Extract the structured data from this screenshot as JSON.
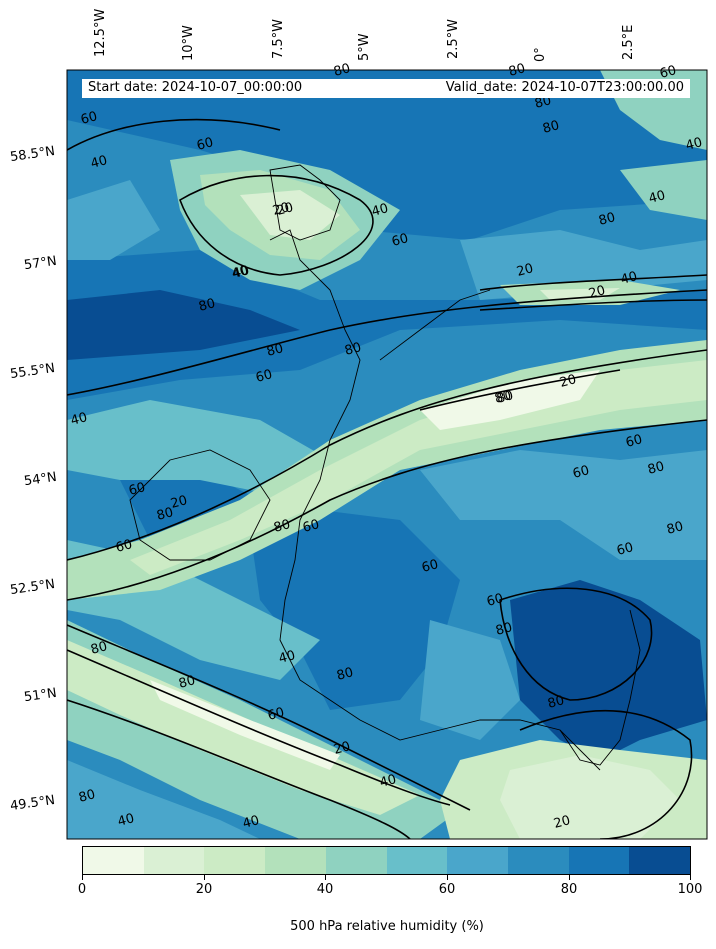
{
  "header": {
    "start_date": "Start date: 2024-10-07_00:00:00",
    "valid_date": "Valid_date: 2024-10-07T23:00:00.00"
  },
  "axes": {
    "lon_labels": [
      "12.5°W",
      "10°W",
      "7.5°W",
      "5°W",
      "2.5°W",
      "0°",
      "2.5°E"
    ],
    "lat_labels": [
      "58.5°N",
      "57°N",
      "55.5°N",
      "54°N",
      "52.5°N",
      "51°N",
      "49.5°N"
    ]
  },
  "colorbar": {
    "title": "500 hPa relative humidity (%)",
    "tick_labels": [
      "0",
      "20",
      "40",
      "60",
      "80",
      "100"
    ],
    "levels": [
      0,
      10,
      20,
      30,
      40,
      50,
      60,
      70,
      80,
      90,
      100
    ],
    "colors": [
      "#f0f9e8",
      "#daf0d4",
      "#ccebc5",
      "#b3e1bb",
      "#8fd2c0",
      "#68bfca",
      "#4aa6cb",
      "#2b8cbe",
      "#1775b5",
      "#084d92"
    ]
  },
  "contour_labels": [
    "80",
    "80",
    "60",
    "40",
    "60",
    "20",
    "40",
    "80",
    "80",
    "40",
    "20",
    "40",
    "40",
    "20",
    "80",
    "80",
    "60",
    "80",
    "40",
    "20",
    "80",
    "60",
    "80",
    "60",
    "80",
    "60",
    "60",
    "80",
    "60",
    "40",
    "80",
    "60",
    "80",
    "20",
    "40",
    "80",
    "20",
    "40",
    "80",
    "40",
    "40",
    "60",
    "20",
    "80",
    "60",
    "80",
    "60",
    "40",
    "20",
    "60",
    "60",
    "80",
    "80",
    "80"
  ],
  "chart_data": {
    "type": "heatmap",
    "variable": "500 hPa relative humidity (%)",
    "colorbar_range": [
      0,
      100
    ],
    "contour_levels": [
      20,
      40,
      60,
      80
    ]
  }
}
